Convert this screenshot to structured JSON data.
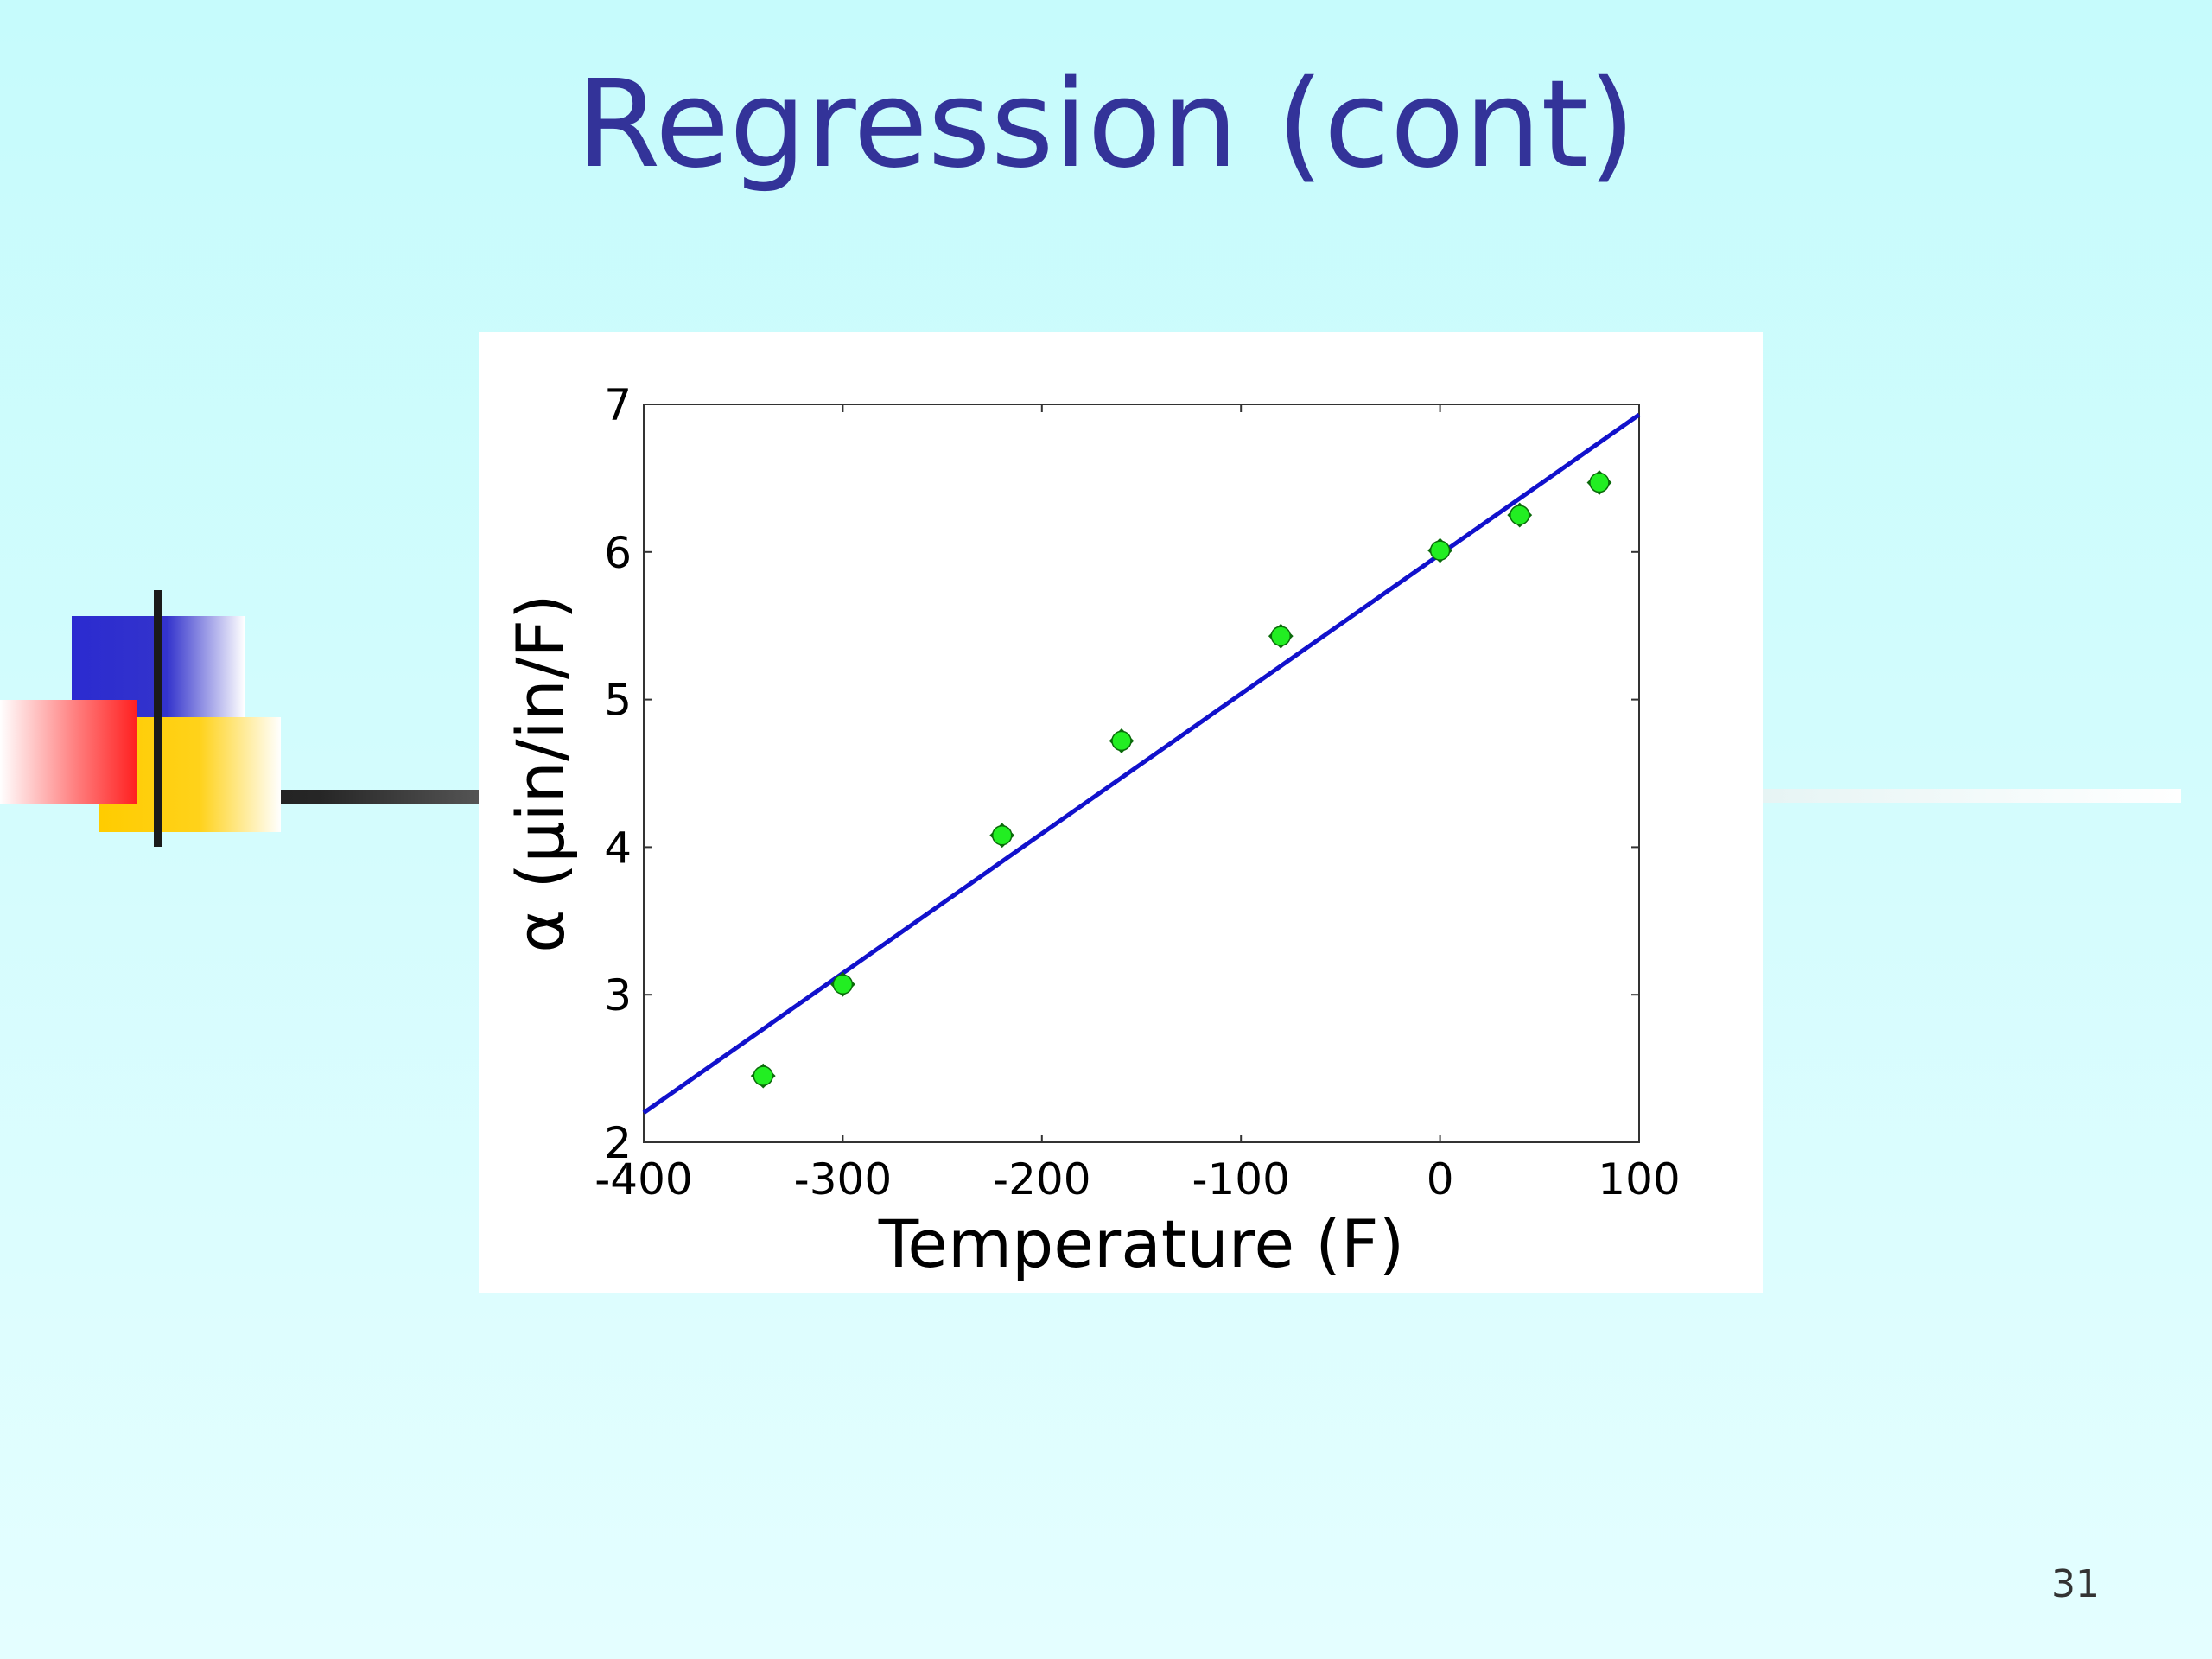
{
  "slide": {
    "title": "Regression (cont)",
    "page_number": "31"
  },
  "colors": {
    "title": "#333399",
    "fit_line": "#1111cc",
    "points": "#22ee22",
    "point_outline": "#0b6b0b"
  },
  "chart_data": {
    "type": "scatter",
    "xlabel": "Temperature (F)",
    "ylabel": "α (μin/in/F)",
    "xlim": [
      -400,
      100
    ],
    "ylim": [
      2,
      7
    ],
    "x_ticks": [
      -400,
      -300,
      -200,
      -100,
      0,
      100
    ],
    "y_ticks": [
      2,
      3,
      4,
      5,
      6,
      7
    ],
    "x_tick_labels": [
      "-400",
      "-300",
      "-200",
      "-100",
      "0",
      "100"
    ],
    "y_tick_labels": [
      "2",
      "3",
      "4",
      "5",
      "6",
      "7"
    ],
    "grid": false,
    "legend": "none",
    "series": [
      {
        "type": "scatter",
        "x": [
          -340,
          -300,
          -220,
          -160,
          -80,
          0,
          40,
          80
        ],
        "y": [
          2.45,
          3.07,
          4.08,
          4.72,
          5.43,
          6.01,
          6.25,
          6.47
        ]
      },
      {
        "type": "line",
        "x": [
          -400,
          100
        ],
        "y": [
          2.2,
          6.93
        ]
      }
    ]
  }
}
